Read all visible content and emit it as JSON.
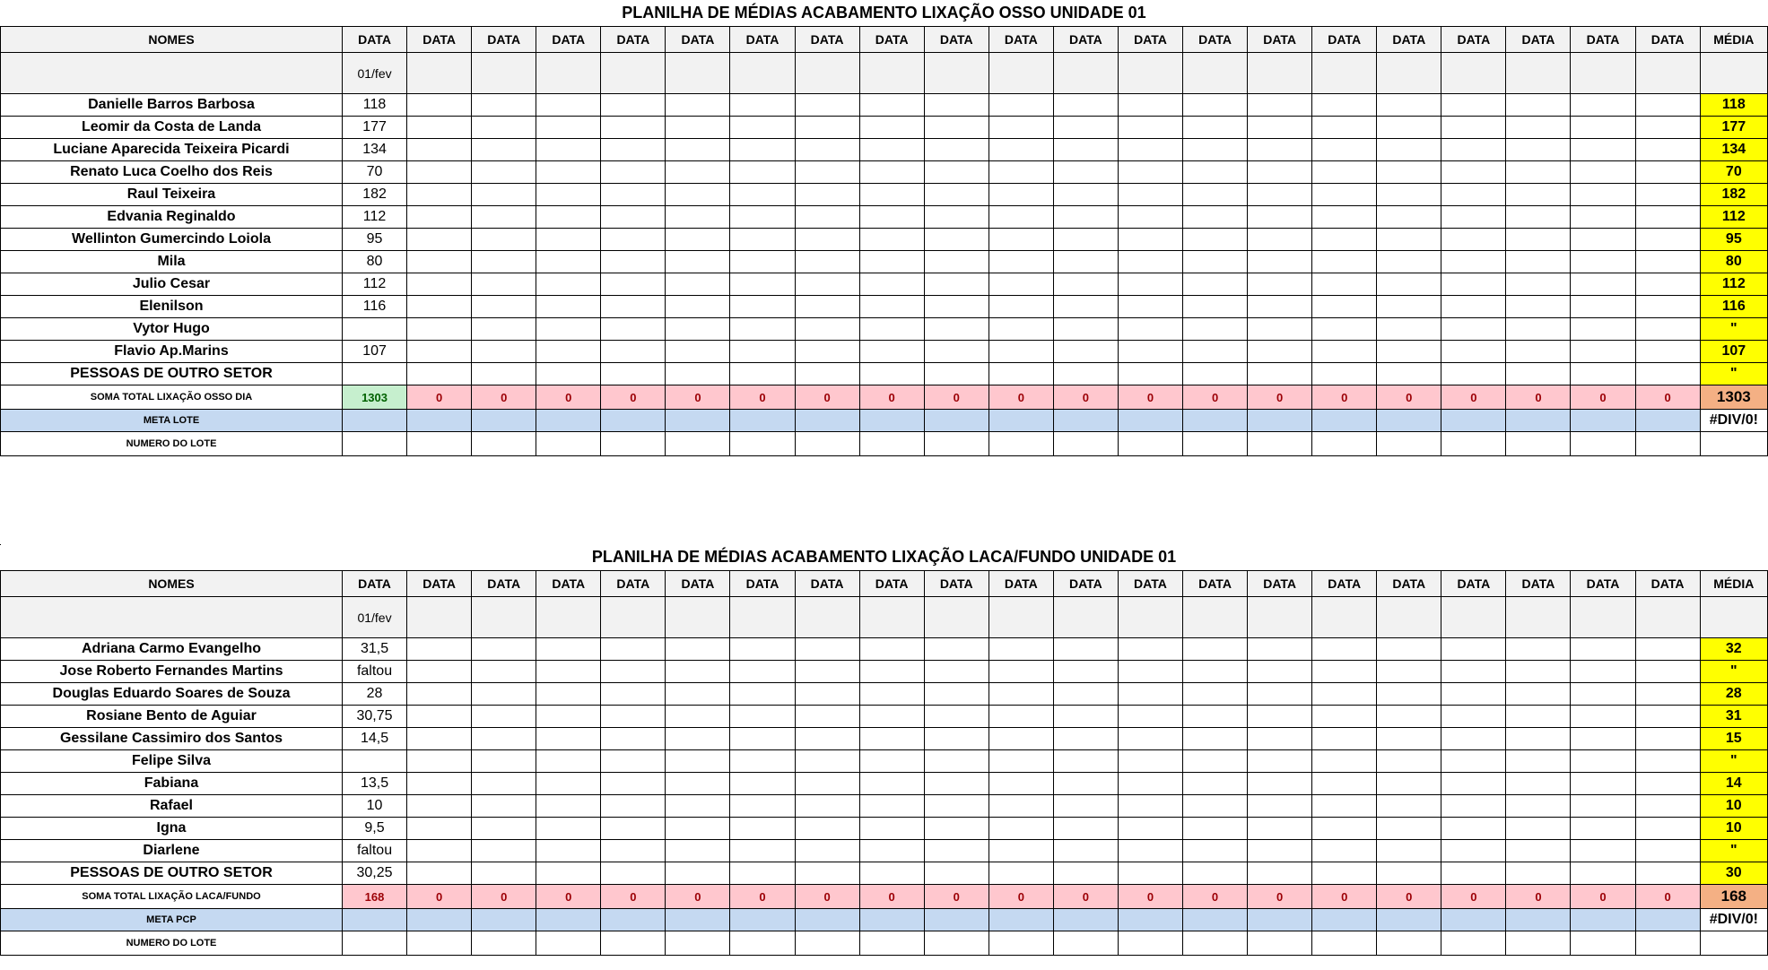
{
  "sheet1": {
    "title": "PLANILHA DE MÉDIAS ACABAMENTO LIXAÇÃO OSSO UNIDADE 01",
    "header": {
      "nomes": "NOMES",
      "data": "DATA",
      "media": "MÉDIA"
    },
    "first_date": "01/fev",
    "rows": [
      {
        "name": "Danielle Barros Barbosa",
        "value": "118",
        "media": "118"
      },
      {
        "name": "Leomir da Costa de Landa",
        "value": "177",
        "media": "177"
      },
      {
        "name": "Luciane Aparecida Teixeira Picardi",
        "value": "134",
        "media": "134"
      },
      {
        "name": "Renato Luca Coelho dos Reis",
        "value": "70",
        "media": "70"
      },
      {
        "name": "Raul Teixeira",
        "value": "182",
        "media": "182"
      },
      {
        "name": "Edvania Reginaldo",
        "value": "112",
        "media": "112"
      },
      {
        "name": "Wellinton Gumercindo Loiola",
        "value": "95",
        "media": "95"
      },
      {
        "name": "Mila",
        "value": "80",
        "media": "80"
      },
      {
        "name": "Julio Cesar",
        "value": "112",
        "media": "112"
      },
      {
        "name": "Elenilson",
        "value": "116",
        "media": "116"
      },
      {
        "name": "Vytor Hugo",
        "value": "",
        "media": "\""
      },
      {
        "name": "Flavio Ap.Marins",
        "value": "107",
        "media": "107"
      },
      {
        "name": "PESSOAS DE OUTRO SETOR",
        "value": "",
        "media": "\""
      }
    ],
    "sum_label": "SOMA TOTAL LIXAÇÃO OSSO DIA",
    "sum_first": "1303",
    "sum_other": "0",
    "sum_media": "1303",
    "meta_label": "META LOTE",
    "meta_media": "#DIV/0!",
    "lote_label": "NUMERO DO LOTE"
  },
  "sheet2": {
    "title": "PLANILHA DE MÉDIAS ACABAMENTO LIXAÇÃO LACA/FUNDO UNIDADE 01",
    "header": {
      "nomes": "NOMES",
      "data": "DATA",
      "media": "MÉDIA"
    },
    "first_date": "01/fev",
    "rows": [
      {
        "name": "Adriana Carmo Evangelho",
        "value": "31,5",
        "media": "32"
      },
      {
        "name": "Jose Roberto Fernandes Martins",
        "value": "faltou",
        "media": "\""
      },
      {
        "name": "Douglas Eduardo Soares de Souza",
        "value": "28",
        "media": "28"
      },
      {
        "name": "Rosiane Bento de Aguiar",
        "value": "30,75",
        "media": "31"
      },
      {
        "name": "Gessilane Cassimiro dos Santos",
        "value": "14,5",
        "media": "15"
      },
      {
        "name": "Felipe Silva",
        "value": "",
        "media": "\""
      },
      {
        "name": "Fabiana",
        "value": "13,5",
        "media": "14"
      },
      {
        "name": "Rafael",
        "value": "10",
        "media": "10"
      },
      {
        "name": "Igna",
        "value": "9,5",
        "media": "10"
      },
      {
        "name": "Diarlene",
        "value": "faltou",
        "media": "\""
      },
      {
        "name": "PESSOAS DE OUTRO SETOR",
        "value": "30,25",
        "media": "30"
      }
    ],
    "sum_label": "SOMA TOTAL LIXAÇÃO LACA/FUNDO",
    "sum_first": "168",
    "sum_other": "0",
    "sum_media": "168",
    "meta_label": "META PCP",
    "meta_media": "#DIV/0!",
    "lote_label": "NUMERO DO LOTE"
  }
}
